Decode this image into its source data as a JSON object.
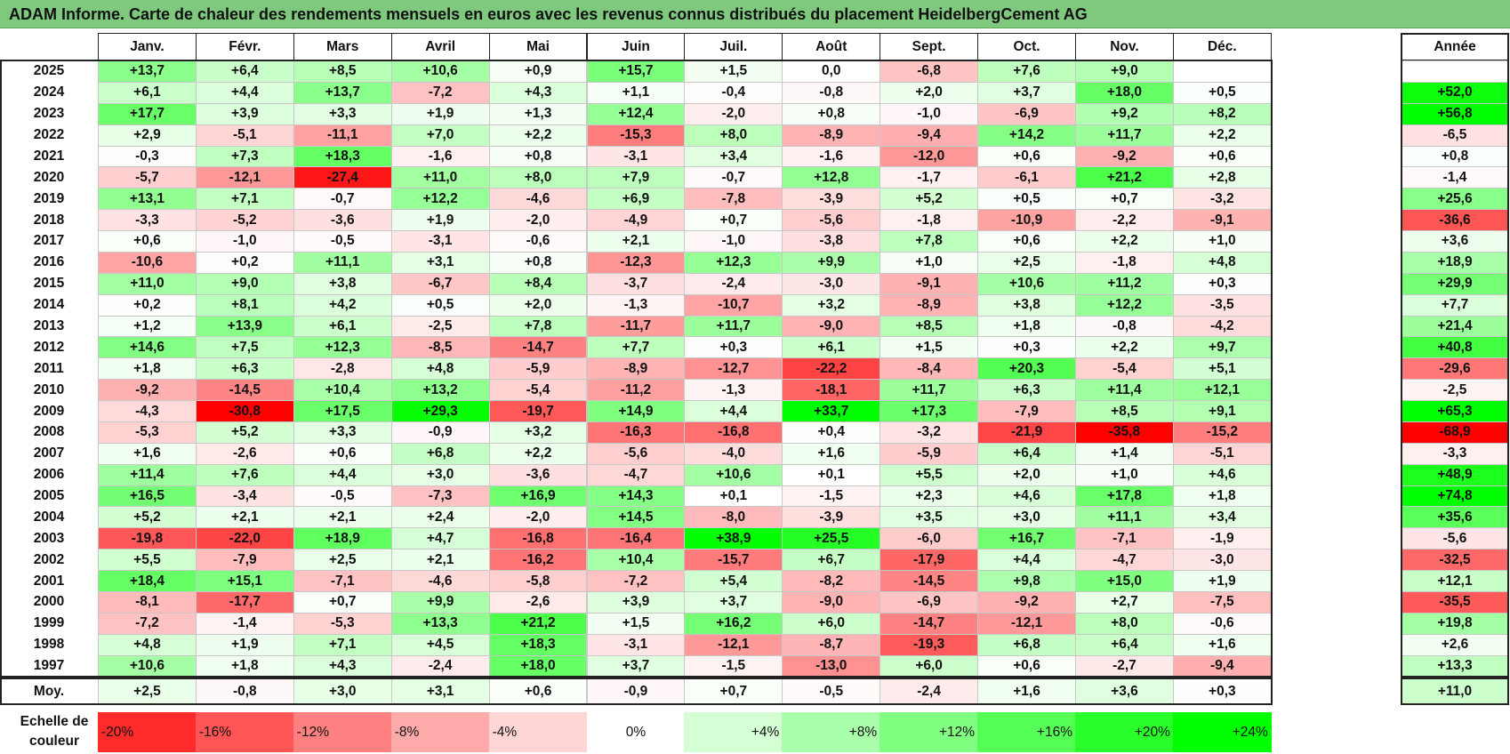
{
  "title": "ADAM Informe. Carte de chaleur des rendements mensuels en euros avec les revenus connus distribués du placement HeidelbergCement AG",
  "chart_data": {
    "type": "heatmap",
    "columns": [
      "Janv.",
      "Févr.",
      "Mars",
      "Avril",
      "Mai",
      "Juin",
      "Juil.",
      "Août",
      "Sept.",
      "Oct.",
      "Nov.",
      "Déc."
    ],
    "year_header": "Année",
    "rows": [
      {
        "year": "2025",
        "values": [
          "+13,7",
          "+6,4",
          "+8,5",
          "+10,6",
          "+0,9",
          "+15,7",
          "+1,5",
          "0,0",
          "-6,8",
          "+7,6",
          "+9,0",
          ""
        ],
        "annual": ""
      },
      {
        "year": "2024",
        "values": [
          "+6,1",
          "+4,4",
          "+13,7",
          "-7,2",
          "+4,3",
          "+1,1",
          "-0,4",
          "-0,8",
          "+2,0",
          "+3,7",
          "+18,0",
          "+0,5"
        ],
        "annual": "+52,0"
      },
      {
        "year": "2023",
        "values": [
          "+17,7",
          "+3,9",
          "+3,3",
          "+1,9",
          "+1,3",
          "+12,4",
          "-2,0",
          "+0,8",
          "-1,0",
          "-6,9",
          "+9,2",
          "+8,2"
        ],
        "annual": "+56,8"
      },
      {
        "year": "2022",
        "values": [
          "+2,9",
          "-5,1",
          "-11,1",
          "+7,0",
          "+2,2",
          "-15,3",
          "+8,0",
          "-8,9",
          "-9,4",
          "+14,2",
          "+11,7",
          "+2,2"
        ],
        "annual": "-6,5"
      },
      {
        "year": "2021",
        "values": [
          "-0,3",
          "+7,3",
          "+18,3",
          "-1,6",
          "+0,8",
          "-3,1",
          "+3,4",
          "-1,6",
          "-12,0",
          "+0,6",
          "-9,2",
          "+0,6"
        ],
        "annual": "+0,8"
      },
      {
        "year": "2020",
        "values": [
          "-5,7",
          "-12,1",
          "-27,4",
          "+11,0",
          "+8,0",
          "+7,9",
          "-0,7",
          "+12,8",
          "-1,7",
          "-6,1",
          "+21,2",
          "+2,8"
        ],
        "annual": "-1,4"
      },
      {
        "year": "2019",
        "values": [
          "+13,1",
          "+7,1",
          "-0,7",
          "+12,2",
          "-4,6",
          "+6,9",
          "-7,8",
          "-3,9",
          "+5,2",
          "+0,5",
          "+0,7",
          "-3,2"
        ],
        "annual": "+25,6"
      },
      {
        "year": "2018",
        "values": [
          "-3,3",
          "-5,2",
          "-3,6",
          "+1,9",
          "-2,0",
          "-4,9",
          "+0,7",
          "-5,6",
          "-1,8",
          "-10,9",
          "-2,2",
          "-9,1"
        ],
        "annual": "-36,6"
      },
      {
        "year": "2017",
        "values": [
          "+0,6",
          "-1,0",
          "-0,5",
          "-3,1",
          "-0,6",
          "+2,1",
          "-1,0",
          "-3,8",
          "+7,8",
          "+0,6",
          "+2,2",
          "+1,0"
        ],
        "annual": "+3,6"
      },
      {
        "year": "2016",
        "values": [
          "-10,6",
          "+0,2",
          "+11,1",
          "+3,1",
          "+0,8",
          "-12,3",
          "+12,3",
          "+9,9",
          "+1,0",
          "+2,5",
          "-1,8",
          "+4,8"
        ],
        "annual": "+18,9"
      },
      {
        "year": "2015",
        "values": [
          "+11,0",
          "+9,0",
          "+3,8",
          "-6,7",
          "+8,4",
          "-3,7",
          "-2,4",
          "-3,0",
          "-9,1",
          "+10,6",
          "+11,2",
          "+0,3"
        ],
        "annual": "+29,9"
      },
      {
        "year": "2014",
        "values": [
          "+0,2",
          "+8,1",
          "+4,2",
          "+0,5",
          "+2,0",
          "-1,3",
          "-10,7",
          "+3,2",
          "-8,9",
          "+3,8",
          "+12,2",
          "-3,5"
        ],
        "annual": "+7,7"
      },
      {
        "year": "2013",
        "values": [
          "+1,2",
          "+13,9",
          "+6,1",
          "-2,5",
          "+7,8",
          "-11,7",
          "+11,7",
          "-9,0",
          "+8,5",
          "+1,8",
          "-0,8",
          "-4,2"
        ],
        "annual": "+21,4"
      },
      {
        "year": "2012",
        "values": [
          "+14,6",
          "+7,5",
          "+12,3",
          "-8,5",
          "-14,7",
          "+7,7",
          "+0,3",
          "+6,1",
          "+1,5",
          "+0,3",
          "+2,2",
          "+9,7"
        ],
        "annual": "+40,8"
      },
      {
        "year": "2011",
        "values": [
          "+1,8",
          "+6,3",
          "-2,8",
          "+4,8",
          "-5,9",
          "-8,9",
          "-12,7",
          "-22,2",
          "-8,4",
          "+20,3",
          "-5,4",
          "+5,1"
        ],
        "annual": "-29,6"
      },
      {
        "year": "2010",
        "values": [
          "-9,2",
          "-14,5",
          "+10,4",
          "+13,2",
          "-5,4",
          "-11,2",
          "-1,3",
          "-18,1",
          "+11,7",
          "+6,3",
          "+11,4",
          "+12,1"
        ],
        "annual": "-2,5"
      },
      {
        "year": "2009",
        "values": [
          "-4,3",
          "-30,8",
          "+17,5",
          "+29,3",
          "-19,7",
          "+14,9",
          "+4,4",
          "+33,7",
          "+17,3",
          "-7,9",
          "+8,5",
          "+9,1"
        ],
        "annual": "+65,3"
      },
      {
        "year": "2008",
        "values": [
          "-5,3",
          "+5,2",
          "+3,3",
          "-0,9",
          "+3,2",
          "-16,3",
          "-16,8",
          "+0,4",
          "-3,2",
          "-21,9",
          "-35,8",
          "-15,2"
        ],
        "annual": "-68,9"
      },
      {
        "year": "2007",
        "values": [
          "+1,6",
          "-2,6",
          "+0,6",
          "+6,8",
          "+2,2",
          "-5,6",
          "-4,0",
          "+1,6",
          "-5,9",
          "+6,4",
          "+1,4",
          "-5,1"
        ],
        "annual": "-3,3"
      },
      {
        "year": "2006",
        "values": [
          "+11,4",
          "+7,6",
          "+4,4",
          "+3,0",
          "-3,6",
          "-4,7",
          "+10,6",
          "+0,1",
          "+5,5",
          "+2,0",
          "+1,0",
          "+4,6"
        ],
        "annual": "+48,9"
      },
      {
        "year": "2005",
        "values": [
          "+16,5",
          "-3,4",
          "-0,5",
          "-7,3",
          "+16,9",
          "+14,3",
          "+0,1",
          "-1,5",
          "+2,3",
          "+4,6",
          "+17,8",
          "+1,8"
        ],
        "annual": "+74,8"
      },
      {
        "year": "2004",
        "values": [
          "+5,2",
          "+2,1",
          "+2,1",
          "+2,4",
          "-2,0",
          "+14,5",
          "-8,0",
          "-3,9",
          "+3,5",
          "+3,0",
          "+11,1",
          "+3,4"
        ],
        "annual": "+35,6"
      },
      {
        "year": "2003",
        "values": [
          "-19,8",
          "-22,0",
          "+18,9",
          "+4,7",
          "-16,8",
          "-16,4",
          "+38,9",
          "+25,5",
          "-6,0",
          "+16,7",
          "-7,1",
          "-1,9"
        ],
        "annual": "-5,6"
      },
      {
        "year": "2002",
        "values": [
          "+5,5",
          "-7,9",
          "+2,5",
          "+2,1",
          "-16,2",
          "+10,4",
          "-15,7",
          "+6,7",
          "-17,9",
          "+4,4",
          "-4,7",
          "-3,0"
        ],
        "annual": "-32,5"
      },
      {
        "year": "2001",
        "values": [
          "+18,4",
          "+15,1",
          "-7,1",
          "-4,6",
          "-5,8",
          "-7,2",
          "+5,4",
          "-8,2",
          "-14,5",
          "+9,8",
          "+15,0",
          "+1,9"
        ],
        "annual": "+12,1"
      },
      {
        "year": "2000",
        "values": [
          "-8,1",
          "-17,7",
          "+0,7",
          "+9,9",
          "-2,6",
          "+3,9",
          "+3,7",
          "-9,0",
          "-6,9",
          "-9,2",
          "+2,7",
          "-7,5"
        ],
        "annual": "-35,5"
      },
      {
        "year": "1999",
        "values": [
          "-7,2",
          "-1,4",
          "-5,3",
          "+13,3",
          "+21,2",
          "+1,5",
          "+16,2",
          "+6,0",
          "-14,7",
          "-12,1",
          "+8,0",
          "-0,6"
        ],
        "annual": "+19,8"
      },
      {
        "year": "1998",
        "values": [
          "+4,8",
          "+1,9",
          "+7,1",
          "+4,5",
          "+18,3",
          "-3,1",
          "-12,1",
          "-8,7",
          "-19,3",
          "+6,8",
          "+6,4",
          "+1,6"
        ],
        "annual": "+2,6"
      },
      {
        "year": "1997",
        "values": [
          "+10,6",
          "+1,8",
          "+4,3",
          "-2,4",
          "+18,0",
          "+3,7",
          "-1,5",
          "-13,0",
          "+6,0",
          "+0,6",
          "-2,7",
          "-9,4"
        ],
        "annual": "+13,3"
      }
    ],
    "average": {
      "label": "Moy.",
      "values": [
        "+2,5",
        "-0,8",
        "+3,0",
        "+3,1",
        "+0,6",
        "-0,9",
        "+0,7",
        "-0,5",
        "-2,4",
        "+1,6",
        "+3,6",
        "+0,3"
      ],
      "annual": "+11,0"
    },
    "color_scale": {
      "label": "Echelle de couleur",
      "steps": [
        "-20%",
        "-16%",
        "-12%",
        "-8%",
        "-4%",
        "0%",
        "+4%",
        "+8%",
        "+12%",
        "+16%",
        "+20%",
        "+24%"
      ],
      "step_values": [
        -20,
        -16,
        -12,
        -8,
        -4,
        0,
        4,
        8,
        12,
        16,
        20,
        24
      ],
      "negative_color": "#ff0000",
      "positive_color": "#00ff00",
      "neutral_color": "#ffffff"
    }
  }
}
